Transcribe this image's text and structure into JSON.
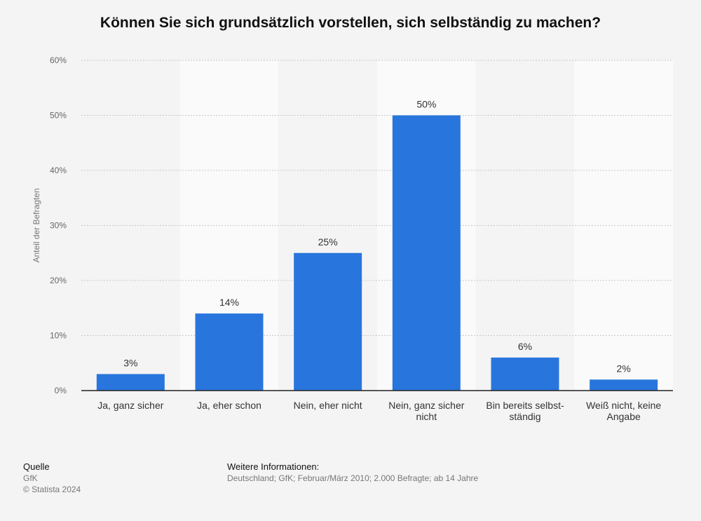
{
  "chart_data": {
    "type": "bar",
    "title": "Können Sie sich grundsätzlich vorstellen, sich selbständig zu machen?",
    "ylabel": "Anteil der Befragten",
    "xlabel": "",
    "ylim": [
      0,
      60
    ],
    "yticks": [
      0,
      10,
      20,
      30,
      40,
      50,
      60
    ],
    "ytick_suffix": "%",
    "grid": true,
    "categories": [
      [
        "Ja, ganz sicher"
      ],
      [
        "Ja, eher schon"
      ],
      [
        "Nein, eher nicht"
      ],
      [
        "Nein, ganz sicher",
        "nicht"
      ],
      [
        "Bin bereits selbst-",
        "ständig"
      ],
      [
        "Weiß nicht, keine",
        "Angabe"
      ]
    ],
    "values": [
      3,
      14,
      25,
      50,
      6,
      2
    ],
    "value_labels": [
      "3%",
      "14%",
      "25%",
      "50%",
      "6%",
      "2%"
    ],
    "bar_color": "#2876dd"
  },
  "footer": {
    "source_heading": "Quelle",
    "source_lines": [
      "GfK",
      "© Statista 2024"
    ],
    "info_heading": "Weitere Informationen:",
    "info_text": "Deutschland; GfK; Februar/März 2010; 2.000 Befragte; ab 14 Jahre"
  }
}
